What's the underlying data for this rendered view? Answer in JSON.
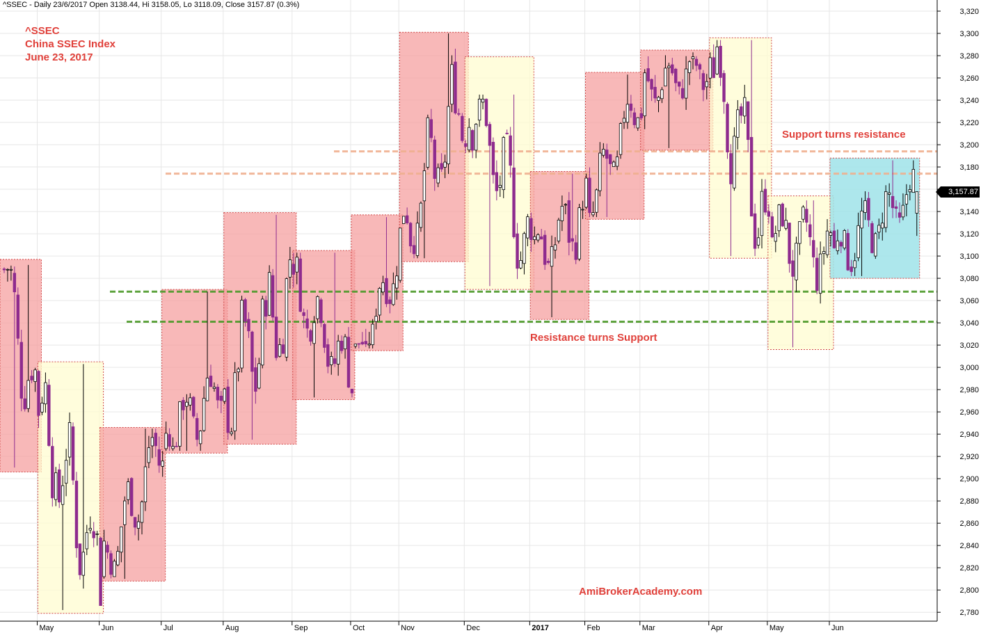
{
  "header": "^SSEC - Daily 23/6/2017 Open 3138.44, Hi 3158.05, Lo 3118.09, Close 3157.87 (0.3%)",
  "annotations": {
    "symbol": "^SSEC",
    "index_name": "China SSEC Index",
    "date": "June 23, 2017",
    "support_turns_resistance": "Support turns resistance",
    "resistance_turns_support": "Resistance turns Support",
    "watermark": "AmiBrokerAcademy.com"
  },
  "last_price_badge": "3,157.87",
  "colors": {
    "up_candle": "#ffffff",
    "down_candle": "#8e2b8e",
    "pink_box": "#f5a0a0",
    "yellow_box": "#fffcd0",
    "cyan_box": "#9fe3e9",
    "support_line": "#4d9a2a",
    "resistance_line": "#f0b090",
    "annotation_text": "#e0403a"
  },
  "chart_data": {
    "type": "candlestick",
    "title": "^SSEC - Daily 23/6/2017 Open 3138.44, Hi 3158.05, Lo 3118.09, Close 3157.87 (0.3%)",
    "ylim": [
      2772,
      3330
    ],
    "y_ticks": [
      "2,780",
      "2,800",
      "2,820",
      "2,840",
      "2,860",
      "2,880",
      "2,900",
      "2,920",
      "2,940",
      "2,960",
      "2,980",
      "3,000",
      "3,020",
      "3,040",
      "3,060",
      "3,080",
      "3,100",
      "3,120",
      "3,140",
      "3,160",
      "3,180",
      "3,200",
      "3,220",
      "3,240",
      "3,260",
      "3,280",
      "3,300",
      "3,320"
    ],
    "x_month_labels": [
      "May",
      "Jun",
      "Jul",
      "Aug",
      "Sep",
      "Oct",
      "Nov",
      "Dec",
      "2017",
      "Feb",
      "Mar",
      "Apr",
      "May",
      "Jun"
    ],
    "grid": true,
    "horizontal_levels": [
      {
        "name": "support_turns_resistance_upper",
        "value": 3194,
        "color": "#f0b090",
        "style": "dashed"
      },
      {
        "name": "support_turns_resistance_lower",
        "value": 3174,
        "color": "#f0b090",
        "style": "dashed"
      },
      {
        "name": "resistance_turns_support_upper",
        "value": 3068,
        "color": "#4d9a2a",
        "style": "dashed"
      },
      {
        "name": "resistance_turns_support_lower",
        "value": 3041,
        "color": "#4d9a2a",
        "style": "dashed"
      }
    ],
    "range_boxes": [
      {
        "color": "pink",
        "from_index": 0,
        "to_index": 10,
        "high": 3097,
        "low": 2906
      },
      {
        "color": "yellow",
        "from_index": 11,
        "to_index": 28,
        "high": 3005,
        "low": 2779
      },
      {
        "color": "pink",
        "from_index": 29,
        "to_index": 46,
        "high": 2946,
        "low": 2808
      },
      {
        "color": "pink",
        "from_index": 47,
        "to_index": 64,
        "high": 3070,
        "low": 2923
      },
      {
        "color": "pink",
        "from_index": 65,
        "to_index": 84,
        "high": 3139,
        "low": 2931
      },
      {
        "color": "pink",
        "from_index": 85,
        "to_index": 101,
        "high": 3105,
        "low": 2971
      },
      {
        "color": "pink",
        "from_index": 102,
        "to_index": 115,
        "high": 3137,
        "low": 3015
      },
      {
        "color": "pink",
        "from_index": 116,
        "to_index": 134,
        "high": 3301,
        "low": 3095
      },
      {
        "color": "yellow",
        "from_index": 135,
        "to_index": 153,
        "high": 3279,
        "low": 3070
      },
      {
        "color": "pink",
        "from_index": 154,
        "to_index": 169,
        "high": 3176,
        "low": 3043
      },
      {
        "color": "pink",
        "from_index": 170,
        "to_index": 185,
        "high": 3265,
        "low": 3133
      },
      {
        "color": "pink",
        "from_index": 186,
        "to_index": 205,
        "high": 3285,
        "low": 3195
      },
      {
        "color": "yellow",
        "from_index": 206,
        "to_index": 222,
        "high": 3296,
        "low": 3098
      },
      {
        "color": "yellow",
        "from_index": 223,
        "to_index": 240,
        "high": 3154,
        "low": 3016
      },
      {
        "color": "cyan",
        "from_index": 241,
        "to_index": 265,
        "high": 3188,
        "low": 3080
      }
    ],
    "series": [
      {
        "name": "^SSEC",
        "segments": [
          {
            "from": 0,
            "to": 10,
            "start": 3088,
            "end": 2950,
            "low": 2910,
            "high": 3092
          },
          {
            "from": 11,
            "to": 28,
            "start": 2950,
            "end": 2820,
            "low": 2782,
            "high": 3003
          },
          {
            "from": 29,
            "to": 46,
            "start": 2820,
            "end": 2935,
            "low": 2810,
            "high": 2945
          },
          {
            "from": 47,
            "to": 64,
            "start": 2935,
            "end": 2985,
            "low": 2925,
            "high": 3068
          },
          {
            "from": 65,
            "to": 84,
            "start": 2985,
            "end": 3070,
            "low": 2935,
            "high": 3137
          },
          {
            "from": 85,
            "to": 101,
            "start": 3070,
            "end": 2990,
            "low": 2973,
            "high": 3103
          },
          {
            "from": 102,
            "to": 115,
            "start": 2990,
            "end": 3110,
            "low": 3017,
            "high": 3135
          },
          {
            "from": 116,
            "to": 134,
            "start": 3110,
            "end": 3250,
            "low": 3098,
            "high": 3300
          },
          {
            "from": 135,
            "to": 153,
            "start": 3250,
            "end": 3100,
            "low": 3073,
            "high": 3245
          },
          {
            "from": 154,
            "to": 169,
            "start": 3100,
            "end": 3140,
            "low": 3045,
            "high": 3174
          },
          {
            "from": 170,
            "to": 185,
            "start": 3140,
            "end": 3250,
            "low": 3135,
            "high": 3263
          },
          {
            "from": 186,
            "to": 205,
            "start": 3250,
            "end": 3270,
            "low": 3197,
            "high": 3283
          },
          {
            "from": 206,
            "to": 222,
            "start": 3270,
            "end": 3120,
            "low": 3100,
            "high": 3294
          },
          {
            "from": 223,
            "to": 240,
            "start": 3120,
            "end": 3100,
            "low": 3018,
            "high": 3150
          },
          {
            "from": 241,
            "to": 265,
            "start": 3100,
            "end": 3157.87,
            "low": 3082,
            "high": 3186
          }
        ]
      }
    ],
    "last_bar": {
      "date": "23/6/2017",
      "open": 3138.44,
      "high": 3158.05,
      "low": 3118.09,
      "close": 3157.87
    }
  }
}
